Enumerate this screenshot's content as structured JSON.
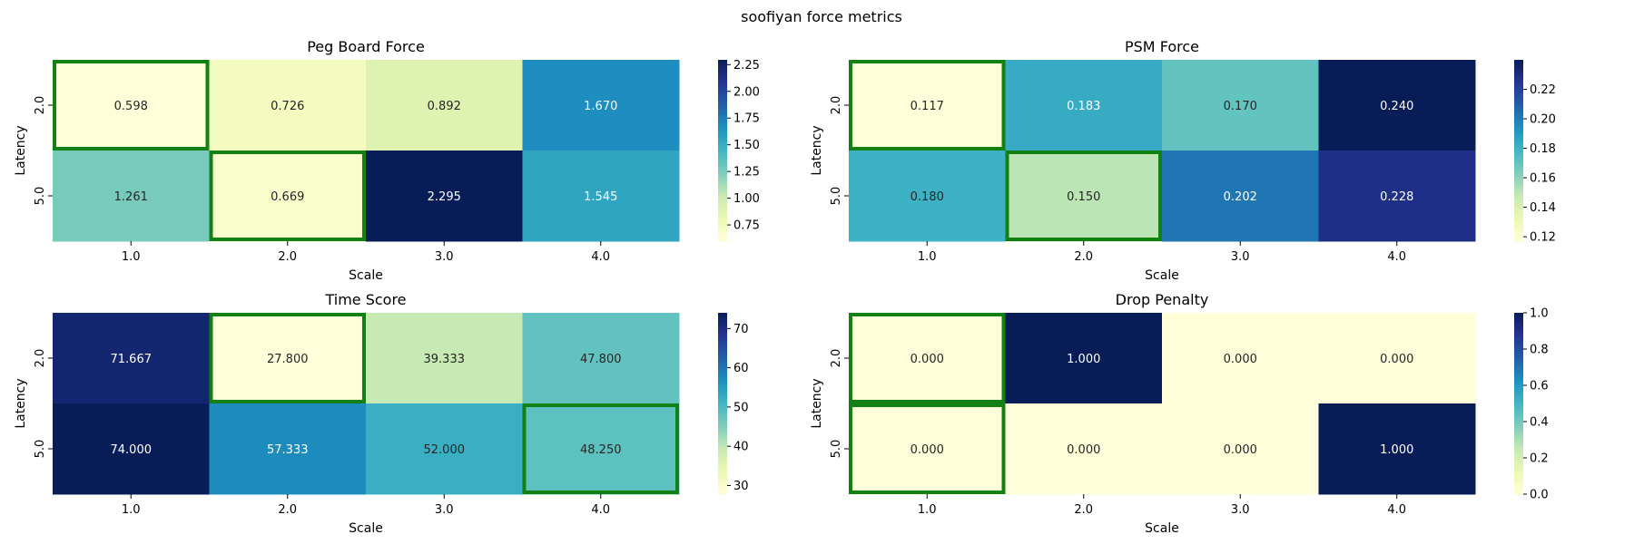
{
  "title": "soofiyan force metrics",
  "chart_data": [
    {
      "type": "heatmap",
      "title": "Peg Board Force",
      "xlabel": "Scale",
      "ylabel": "Latency",
      "x_categories": [
        "1.0",
        "2.0",
        "3.0",
        "4.0"
      ],
      "y_categories": [
        "2.0",
        "5.0"
      ],
      "values": [
        [
          0.598,
          0.726,
          0.892,
          1.67
        ],
        [
          1.261,
          0.669,
          2.295,
          1.545
        ]
      ],
      "cell_labels": [
        [
          "0.598",
          "0.726",
          "0.892",
          "1.670"
        ],
        [
          "1.261",
          "0.669",
          "2.295",
          "1.545"
        ]
      ],
      "colorbar_range": [
        0.598,
        2.295
      ],
      "colorbar_ticks": [
        0.75,
        1.0,
        1.25,
        1.5,
        1.75,
        2.0,
        2.25
      ],
      "colorbar_tick_labels": [
        "0.75",
        "1.00",
        "1.25",
        "1.50",
        "1.75",
        "2.00",
        "2.25"
      ],
      "highlighted_cells": [
        [
          0,
          0
        ],
        [
          1,
          1
        ]
      ],
      "colormap": "YlGnBu",
      "highlight_color": "#138013"
    },
    {
      "type": "heatmap",
      "title": "PSM Force",
      "xlabel": "Scale",
      "ylabel": "Latency",
      "x_categories": [
        "1.0",
        "2.0",
        "3.0",
        "4.0"
      ],
      "y_categories": [
        "2.0",
        "5.0"
      ],
      "values": [
        [
          0.117,
          0.183,
          0.17,
          0.24
        ],
        [
          0.18,
          0.15,
          0.202,
          0.228
        ]
      ],
      "cell_labels": [
        [
          "0.117",
          "0.183",
          "0.170",
          "0.240"
        ],
        [
          "0.180",
          "0.150",
          "0.202",
          "0.228"
        ]
      ],
      "colorbar_range": [
        0.117,
        0.24
      ],
      "colorbar_ticks": [
        0.12,
        0.14,
        0.16,
        0.18,
        0.2,
        0.22
      ],
      "colorbar_tick_labels": [
        "0.12",
        "0.14",
        "0.16",
        "0.18",
        "0.20",
        "0.22"
      ],
      "highlighted_cells": [
        [
          0,
          0
        ],
        [
          1,
          1
        ]
      ],
      "colormap": "YlGnBu",
      "highlight_color": "#138013"
    },
    {
      "type": "heatmap",
      "title": "Time Score",
      "xlabel": "Scale",
      "ylabel": "Latency",
      "x_categories": [
        "1.0",
        "2.0",
        "3.0",
        "4.0"
      ],
      "y_categories": [
        "2.0",
        "5.0"
      ],
      "values": [
        [
          71.667,
          27.8,
          39.333,
          47.8
        ],
        [
          74.0,
          57.333,
          52.0,
          48.25
        ]
      ],
      "cell_labels": [
        [
          "71.667",
          "27.800",
          "39.333",
          "47.800"
        ],
        [
          "74.000",
          "57.333",
          "52.000",
          "48.250"
        ]
      ],
      "colorbar_range": [
        27.8,
        74.0
      ],
      "colorbar_ticks": [
        30,
        40,
        50,
        60,
        70
      ],
      "colorbar_tick_labels": [
        "30",
        "40",
        "50",
        "60",
        "70"
      ],
      "highlighted_cells": [
        [
          0,
          1
        ],
        [
          1,
          3
        ]
      ],
      "colormap": "YlGnBu",
      "highlight_color": "#138013"
    },
    {
      "type": "heatmap",
      "title": "Drop Penalty",
      "xlabel": "Scale",
      "ylabel": "Latency",
      "x_categories": [
        "1.0",
        "2.0",
        "3.0",
        "4.0"
      ],
      "y_categories": [
        "2.0",
        "5.0"
      ],
      "values": [
        [
          0.0,
          1.0,
          0.0,
          0.0
        ],
        [
          0.0,
          0.0,
          0.0,
          1.0
        ]
      ],
      "cell_labels": [
        [
          "0.000",
          "1.000",
          "0.000",
          "0.000"
        ],
        [
          "0.000",
          "0.000",
          "0.000",
          "1.000"
        ]
      ],
      "colorbar_range": [
        0.0,
        1.0
      ],
      "colorbar_ticks": [
        0.0,
        0.2,
        0.4,
        0.6,
        0.8,
        1.0
      ],
      "colorbar_tick_labels": [
        "0.0",
        "0.2",
        "0.4",
        "0.6",
        "0.8",
        "1.0"
      ],
      "highlighted_cells": [
        [
          0,
          0
        ],
        [
          1,
          0
        ]
      ],
      "colormap": "YlGnBu",
      "highlight_color": "#138013"
    }
  ]
}
